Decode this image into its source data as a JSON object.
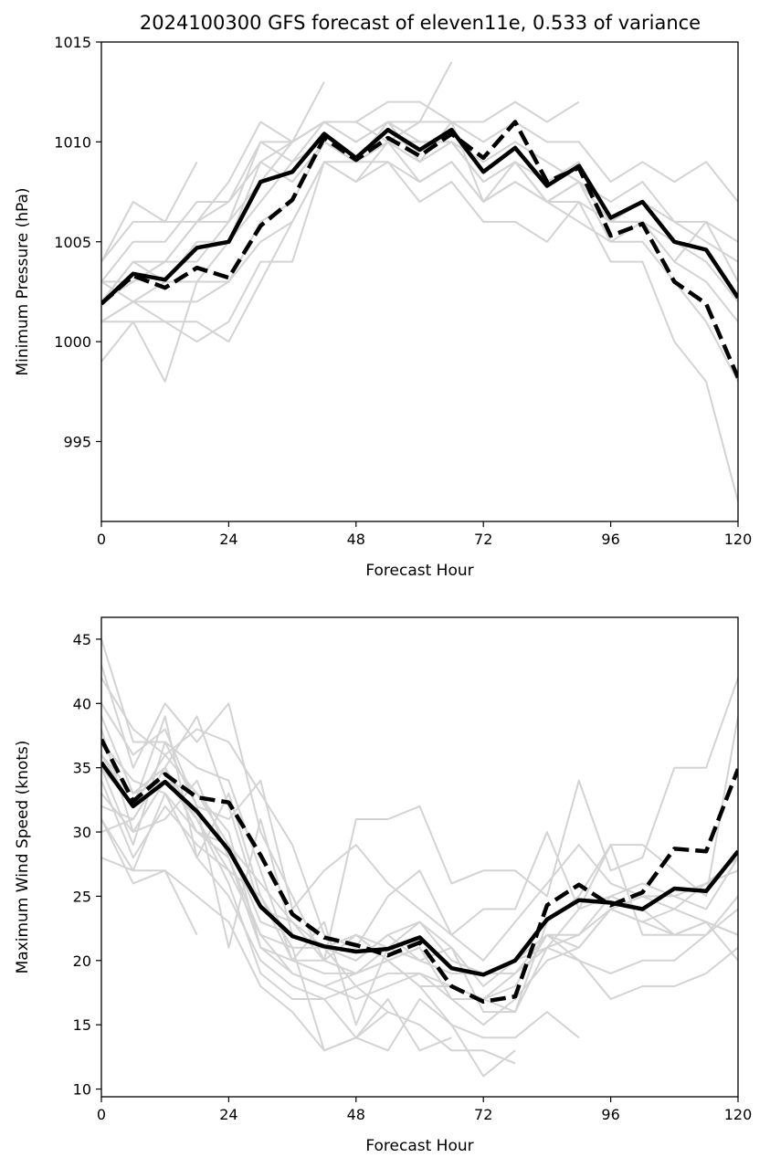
{
  "title": "2024100300 GFS forecast of eleven11e, 0.533 of variance",
  "colors": {
    "members": "#d3d3d3",
    "mean": "#000000",
    "highlight": "#000000",
    "frame": "#000000"
  },
  "chart_data": [
    {
      "type": "line",
      "xlabel": "Forecast Hour",
      "ylabel": "Minimum Pressure (hPa)",
      "xlim": [
        0,
        120
      ],
      "ylim": [
        991,
        1015
      ],
      "xticks": [
        0,
        24,
        48,
        72,
        96,
        120
      ],
      "yticks": [
        995,
        1000,
        1005,
        1010,
        1015
      ],
      "x": [
        0,
        6,
        12,
        18,
        24,
        30,
        36,
        42,
        48,
        54,
        60,
        66,
        72,
        78,
        84,
        90,
        96,
        102,
        108,
        114,
        120
      ],
      "members": [
        [
          1004,
          1007,
          1006,
          1009,
          null,
          null,
          null,
          null,
          null,
          null,
          null,
          null,
          null,
          null,
          null,
          null,
          null,
          null,
          null,
          null,
          null
        ],
        [
          1002,
          1003,
          1004,
          1006,
          1008,
          1011,
          1010,
          1013,
          null,
          null,
          null,
          null,
          null,
          null,
          null,
          null,
          null,
          null,
          null,
          null,
          null
        ],
        [
          1003,
          1005,
          1005,
          1007,
          1007,
          1010,
          1010,
          1011,
          1011,
          1010,
          1011,
          1014,
          null,
          null,
          null,
          null,
          null,
          null,
          null,
          null,
          null
        ],
        [
          1002,
          1004,
          1004,
          1006,
          1006,
          1008,
          1010,
          1011,
          1011,
          1012,
          1012,
          1011,
          1011,
          1012,
          1011,
          1012,
          null,
          null,
          null,
          null,
          null
        ],
        [
          1001,
          1002,
          1003,
          1005,
          1005,
          1009,
          1010,
          1011,
          1010,
          1011,
          1011,
          1011,
          1010,
          1011,
          1010,
          1010,
          1008,
          1009,
          1008,
          1009,
          1007
        ],
        [
          1003,
          1003,
          1004,
          1004,
          1006,
          1010,
          1009,
          1011,
          1010,
          1011,
          1010,
          1010,
          1009,
          1010,
          1009,
          1008,
          1007,
          1008,
          1006,
          1006,
          1005
        ],
        [
          1002,
          1004,
          1003,
          1003,
          1005,
          1007,
          1009,
          1010,
          1009,
          1010,
          1010,
          1010,
          1008,
          1009,
          1008,
          1009,
          1006,
          1007,
          1006,
          1005,
          1004
        ],
        [
          1004,
          1006,
          1006,
          1006,
          1007,
          1009,
          1008,
          1010,
          1009,
          1010,
          1009,
          1011,
          1007,
          1008,
          1007,
          1008,
          1005,
          1006,
          1004,
          1006,
          1003
        ],
        [
          1001,
          1002,
          1002,
          1002,
          1003,
          1006,
          1007,
          1010,
          1009,
          1009,
          1008,
          1009,
          1007,
          1009,
          1007,
          1007,
          1006,
          1006,
          1005,
          1004,
          1002
        ],
        [
          1001,
          1001,
          998,
          1003,
          1003,
          1005,
          1006,
          1009,
          1008,
          1009,
          1007,
          1008,
          1006,
          1006,
          1005,
          1007,
          1004,
          1004,
          1000,
          998,
          992
        ],
        [
          999,
          1001,
          1001,
          1000,
          1001,
          1004,
          1004,
          1009,
          1008,
          1010,
          1008,
          1009,
          1007,
          1008,
          1007,
          1006,
          1005,
          1005,
          1003,
          1001,
          998
        ],
        [
          1003,
          1002,
          1001,
          1001,
          1000,
          1003,
          1006,
          1009,
          1009,
          1011,
          1009,
          1010,
          1008,
          1009,
          1007,
          1008,
          1006,
          1006,
          1004,
          1003,
          1001
        ]
      ],
      "mean": [
        1001.9,
        1003.4,
        1003.1,
        1004.7,
        1005.0,
        1008.0,
        1008.5,
        1010.4,
        1009.2,
        1010.6,
        1009.6,
        1010.6,
        1008.5,
        1009.7,
        1007.8,
        1008.8,
        1006.2,
        1007.0,
        1005.0,
        1004.6,
        1002.2
      ],
      "highlight": [
        1001.9,
        1003.3,
        1002.7,
        1003.7,
        1003.2,
        1005.8,
        1007.1,
        1010.2,
        1009.1,
        1010.2,
        1009.3,
        1010.4,
        1009.2,
        1011.0,
        1008.0,
        1008.7,
        1005.3,
        1005.9,
        1003.0,
        1001.9,
        998.2
      ]
    },
    {
      "type": "line",
      "xlabel": "Forecast Hour",
      "ylabel": "Maximum Wind Speed (knots)",
      "xlim": [
        0,
        120
      ],
      "ylim": [
        9.4,
        46.7
      ],
      "xticks": [
        0,
        24,
        48,
        72,
        96,
        120
      ],
      "yticks": [
        10,
        15,
        20,
        25,
        30,
        35,
        40,
        45
      ],
      "x": [
        0,
        6,
        12,
        18,
        24,
        30,
        36,
        42,
        48,
        54,
        60,
        66,
        72,
        78,
        84,
        90,
        96,
        102,
        108,
        114,
        120
      ],
      "members": [
        [
          45,
          37,
          37,
          35,
          34,
          27,
          20,
          23,
          15,
          21,
          null,
          null,
          null,
          null,
          null,
          null,
          null,
          null,
          null,
          null,
          null
        ],
        [
          43,
          35,
          40,
          37,
          40,
          30,
          25,
          20,
          31,
          31,
          32,
          26,
          27,
          27,
          25,
          34,
          27,
          28,
          35,
          35,
          42
        ],
        [
          42,
          38,
          36,
          38,
          37,
          33,
          29,
          22,
          21,
          25,
          27,
          22,
          20,
          23,
          26,
          29,
          26,
          25,
          24,
          23,
          22
        ],
        [
          40,
          36,
          38,
          32,
          31,
          34,
          24,
          27,
          29,
          26,
          24,
          22,
          24,
          24,
          30,
          24,
          29,
          29,
          27,
          25,
          39
        ],
        [
          39,
          33,
          35,
          39,
          32,
          24,
          23,
          21,
          20,
          22,
          23,
          20,
          19,
          19,
          21,
          20,
          17,
          18,
          18,
          19,
          21
        ],
        [
          38,
          30,
          34,
          33,
          29,
          26,
          23,
          20,
          19,
          21,
          23,
          21,
          16,
          16,
          23,
          25,
          29,
          22,
          22,
          23,
          20
        ],
        [
          37,
          34,
          33,
          30,
          29,
          23,
          22,
          21,
          20,
          22,
          20,
          21,
          18,
          20,
          21,
          24,
          25,
          26,
          25,
          24,
          28
        ],
        [
          36,
          32,
          39,
          28,
          33,
          25,
          20,
          19,
          19,
          20,
          18,
          18,
          17,
          19,
          22,
          22,
          25,
          24,
          22,
          23,
          22
        ],
        [
          35,
          29,
          37,
          32,
          21,
          31,
          22,
          21,
          18,
          19,
          19,
          17,
          17,
          18,
          22,
          21,
          24,
          23,
          24,
          26,
          28
        ],
        [
          34,
          28,
          32,
          29,
          27,
          22,
          19,
          18,
          19,
          20,
          21,
          17,
          15,
          17,
          20,
          21,
          24,
          25,
          25,
          26,
          27
        ],
        [
          33,
          30,
          31,
          34,
          28,
          21,
          20,
          20,
          22,
          20,
          18,
          15,
          14,
          14,
          16,
          14,
          null,
          null,
          null,
          null,
          null
        ],
        [
          32,
          31,
          35,
          30,
          28,
          22,
          21,
          13,
          14,
          13,
          17,
          15,
          11,
          13,
          null,
          null,
          null,
          null,
          null,
          null,
          null
        ],
        [
          31,
          27,
          33,
          28,
          25,
          20,
          18,
          17,
          18,
          16,
          null,
          null,
          null,
          null,
          null,
          null,
          null,
          null,
          null,
          null,
          null
        ],
        [
          30,
          31,
          35,
          31,
          26,
          19,
          17,
          17,
          14,
          17,
          13,
          14,
          null,
          null,
          null,
          null,
          null,
          null,
          null,
          null,
          null
        ],
        [
          28,
          27,
          27,
          22,
          null,
          null,
          null,
          null,
          null,
          null,
          null,
          null,
          null,
          null,
          null,
          null,
          null,
          null,
          null,
          null,
          null
        ],
        [
          31,
          26,
          27,
          25,
          23,
          18,
          16,
          13,
          14,
          16,
          15,
          13,
          13,
          12,
          null,
          null,
          null,
          null,
          null,
          null,
          null
        ],
        [
          35,
          32,
          36,
          33,
          30,
          21,
          19,
          18,
          17,
          18,
          19,
          18,
          17,
          16,
          21,
          22,
          24,
          23,
          22,
          22,
          25
        ],
        [
          36,
          33,
          34,
          31,
          27,
          25,
          21,
          21,
          22,
          21,
          20,
          19,
          19,
          20,
          22,
          20,
          19,
          20,
          20,
          22,
          24
        ]
      ],
      "mean": [
        35.4,
        32.0,
        33.9,
        31.6,
        28.6,
        24.2,
        21.9,
        21.1,
        20.7,
        20.9,
        21.8,
        19.4,
        18.9,
        20.0,
        23.2,
        24.7,
        24.5,
        24.0,
        25.6,
        25.4,
        28.5
      ],
      "highlight": [
        37.2,
        32.4,
        34.5,
        32.7,
        32.3,
        28.2,
        23.6,
        21.8,
        21.2,
        20.4,
        21.4,
        18.0,
        16.8,
        17.2,
        24.3,
        25.9,
        24.3,
        25.3,
        28.7,
        28.5,
        34.9
      ]
    }
  ]
}
